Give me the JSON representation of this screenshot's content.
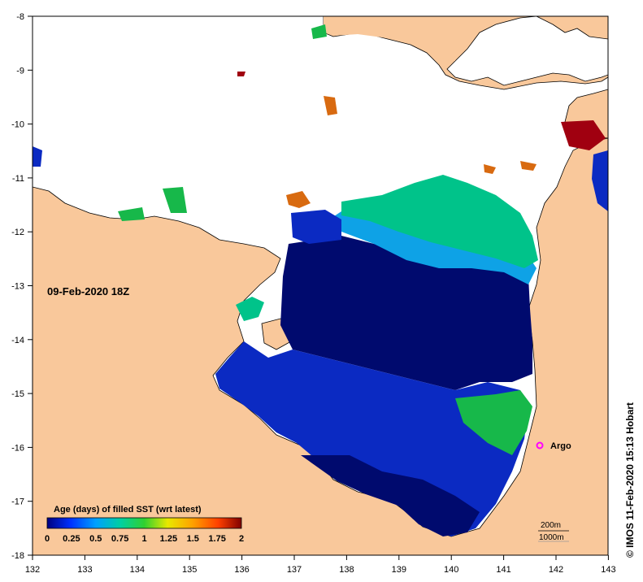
{
  "map": {
    "date_label": "09-Feb-2020 18Z",
    "credit": "© IMOS 11-Feb-2020 15:13 Hobart",
    "lon_ticks": [
      "132",
      "133",
      "134",
      "135",
      "136",
      "137",
      "138",
      "139",
      "140",
      "141",
      "142",
      "143"
    ],
    "lat_ticks": [
      "-8",
      "-9",
      "-10",
      "-11",
      "-12",
      "-13",
      "-14",
      "-15",
      "-16",
      "-17",
      "-18"
    ],
    "argo": {
      "label": "Argo",
      "lon": 141.7,
      "lat": -16.0,
      "color": "#ff00ff"
    },
    "contours": {
      "c200": "200m",
      "c1000": "1000m"
    },
    "colors": {
      "land": "#f9c89b",
      "nodata": "#ffffff",
      "navy": "#000a6e",
      "blue": "#0b2ac2",
      "skyblue": "#0ea2e6",
      "teal": "#00c38a",
      "green": "#17b84a",
      "orange": "#d86a10",
      "darkred": "#a00010"
    }
  },
  "colorbar": {
    "title": "Age (days) of filled SST (wrt latest)",
    "ticks": [
      "0",
      "0.25",
      "0.5",
      "0.75",
      "1",
      "1.25",
      "1.5",
      "1.75",
      "2"
    ],
    "stops": [
      "#000080",
      "#0030ff",
      "#00a0ff",
      "#00d0a0",
      "#30d030",
      "#e8e800",
      "#ffa000",
      "#ff4000",
      "#800000"
    ]
  }
}
